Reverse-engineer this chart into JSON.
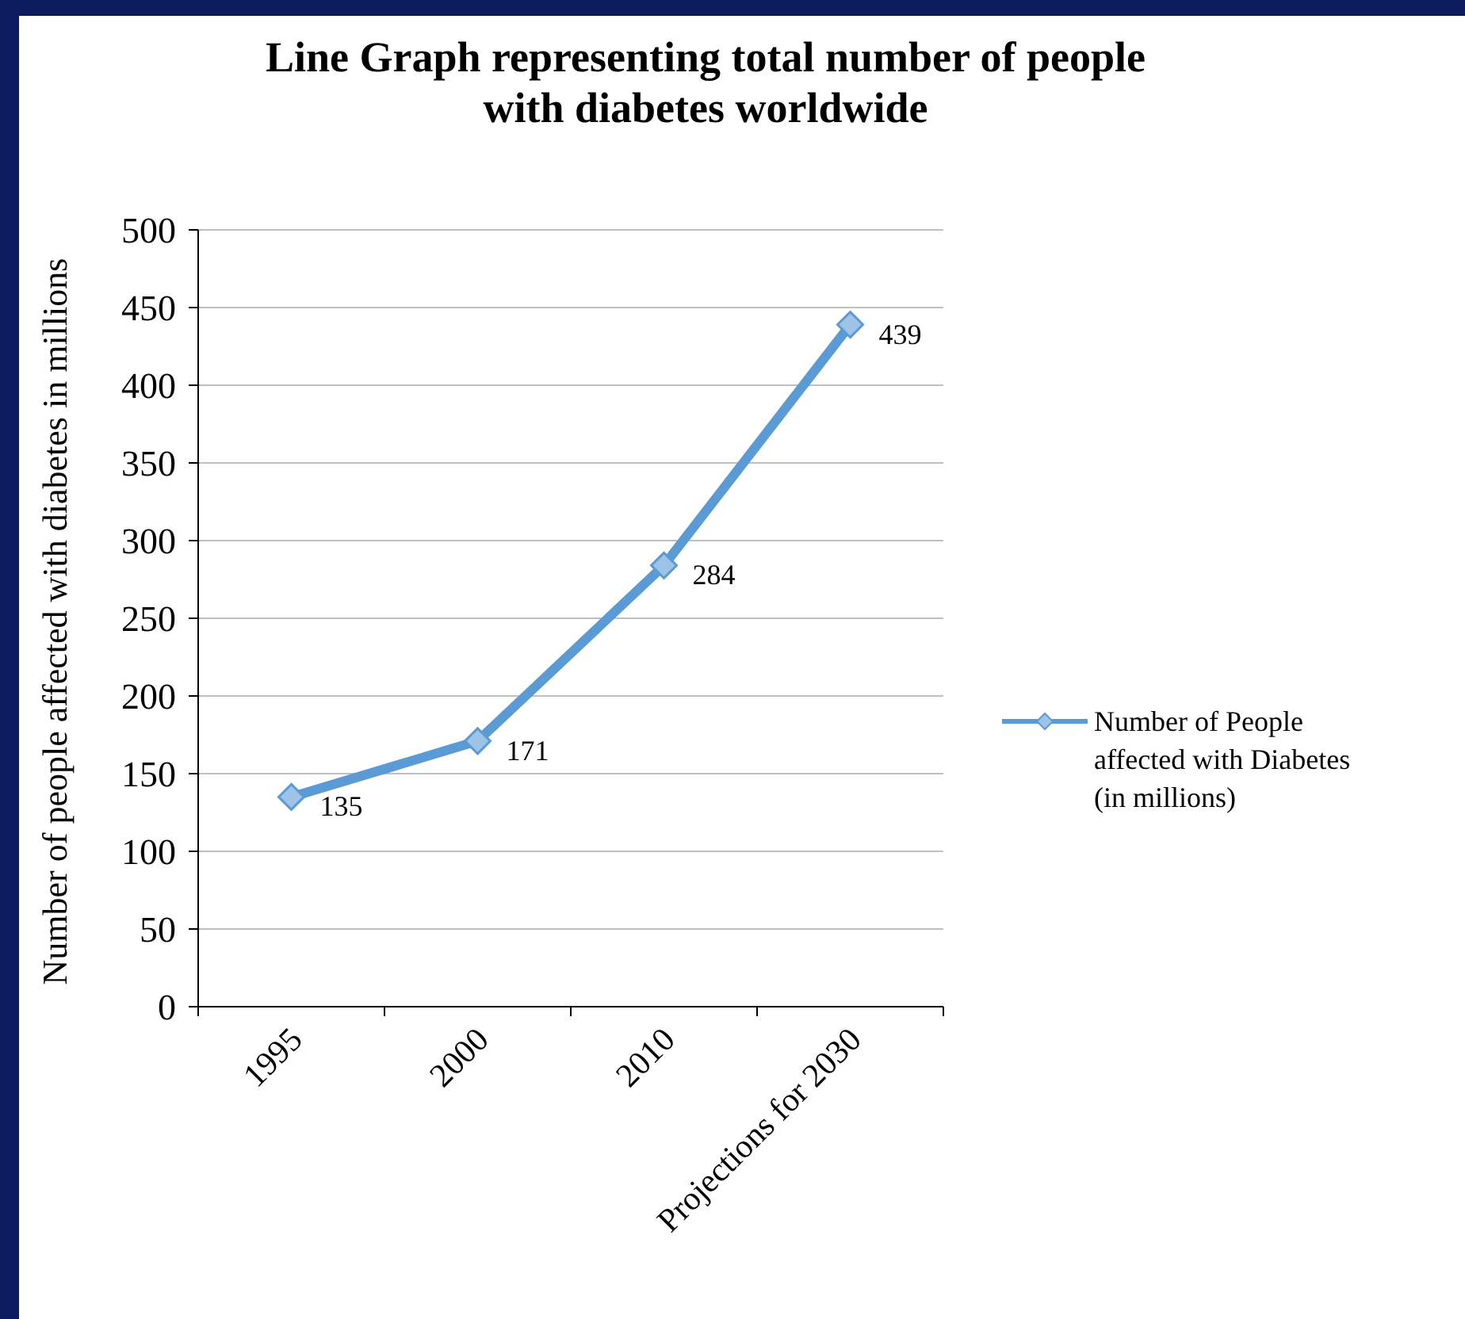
{
  "chart_data": {
    "type": "line",
    "title": "Line Graph representing total number of people with diabetes worldwide",
    "ylabel": "Number of people affected with diabetes in millions",
    "categories": [
      "1995",
      "2000",
      "2010",
      "Projections for 2030"
    ],
    "series": [
      {
        "name": "Number of People affected with Diabetes (in millions)",
        "color": "#5b9bd5",
        "values": [
          135,
          171,
          284,
          439
        ]
      }
    ],
    "ylim": [
      0,
      500
    ],
    "yticks": [
      0,
      50,
      100,
      150,
      200,
      250,
      300,
      350,
      400,
      450,
      500
    ],
    "grid": "y",
    "legend": "right",
    "marker": "diamond",
    "line_style": "solid",
    "data_labels": true
  }
}
